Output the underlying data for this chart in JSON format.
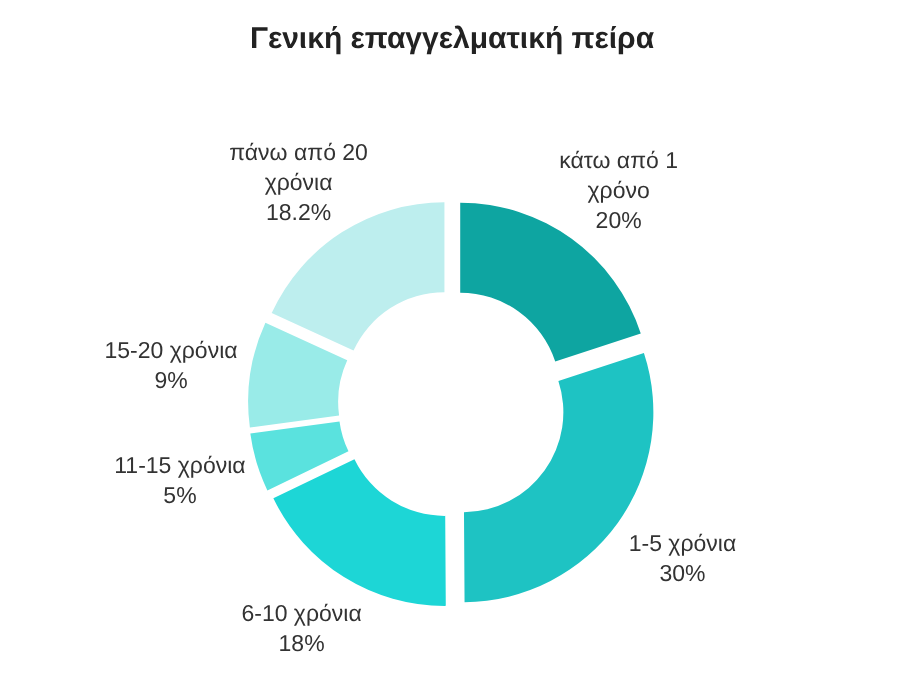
{
  "chart_data": {
    "type": "donut",
    "title": "Γενική επαγγελματική πείρα",
    "categories": [
      "κάτω από 1 χρόνο",
      "1-5 χρόνια",
      "6-10 χρόνια",
      "11-15 χρόνια",
      "15-20 χρόνια",
      "πάνω από 20 χρόνια"
    ],
    "values": [
      20,
      30,
      18,
      5,
      9,
      18.2
    ],
    "value_labels": [
      "20%",
      "30%",
      "18%",
      "5%",
      "9%",
      "18.2%"
    ],
    "colors": [
      "#0ea5a1",
      "#1ec3c3",
      "#1dd6d6",
      "#5ae2de",
      "#99ebe8",
      "#bdeeee"
    ]
  }
}
